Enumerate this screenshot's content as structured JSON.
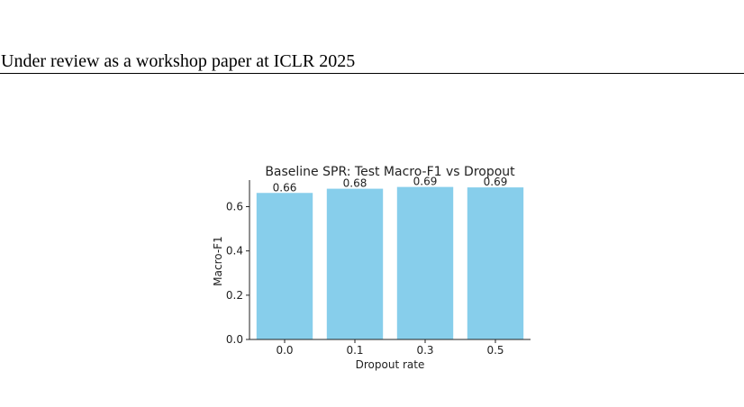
{
  "header": {
    "text": "Under review as a workshop paper at ICLR 2025"
  },
  "chart_data": {
    "type": "bar",
    "title": "Baseline SPR: Test Macro-F1 vs Dropout",
    "xlabel": "Dropout rate",
    "ylabel": "Macro-F1",
    "categories": [
      "0.0",
      "0.1",
      "0.3",
      "0.5"
    ],
    "values": [
      0.662,
      0.681,
      0.689,
      0.687
    ],
    "value_labels": [
      "0.66",
      "0.68",
      "0.69",
      "0.69"
    ],
    "y_ticks": [
      "0.0",
      "0.2",
      "0.4",
      "0.6"
    ],
    "ylim": [
      0,
      0.72
    ],
    "grid": false,
    "bar_color": "#87ceeb"
  }
}
